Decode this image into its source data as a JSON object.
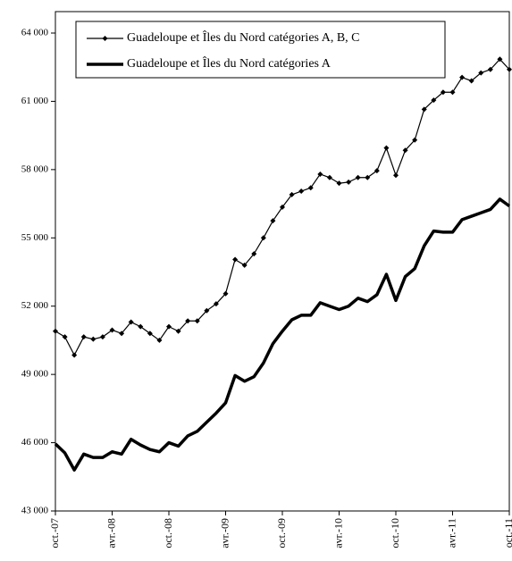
{
  "chart_data": {
    "type": "line",
    "categories": [
      "oct.-07",
      null,
      null,
      null,
      null,
      null,
      "avr.-08",
      null,
      null,
      null,
      null,
      null,
      "oct.-08",
      null,
      null,
      null,
      null,
      null,
      "avr.-09",
      null,
      null,
      null,
      null,
      null,
      "oct.-09",
      null,
      null,
      null,
      null,
      null,
      "avr.-10",
      null,
      null,
      null,
      null,
      null,
      "oct.-10",
      null,
      null,
      null,
      null,
      null,
      "avr.-11",
      null,
      null,
      null,
      null,
      null,
      "oct.-11"
    ],
    "series": [
      {
        "name": "Guadeloupe et Îles du Nord catégories A, B, C",
        "color": "#000000",
        "marker": true,
        "values": [
          50900,
          50650,
          49850,
          50650,
          50550,
          50650,
          50950,
          50800,
          51300,
          51100,
          50800,
          50500,
          51100,
          50900,
          51350,
          51350,
          51800,
          52100,
          52550,
          54050,
          53800,
          54300,
          55000,
          55750,
          56350,
          56900,
          57050,
          57200,
          57800,
          57650,
          57400,
          57450,
          57650,
          57650,
          57950,
          58950,
          57750,
          58850,
          59300,
          60650,
          61050,
          61400,
          61400,
          62050,
          61900,
          62250,
          62400,
          62850,
          62400
        ]
      },
      {
        "name": "Guadeloupe et Îles du Nord catégories A",
        "color": "#000000",
        "marker": false,
        "values": [
          45950,
          45550,
          44800,
          45500,
          45350,
          45350,
          45600,
          45500,
          46150,
          45900,
          45700,
          45600,
          46000,
          45850,
          46300,
          46500,
          46900,
          47300,
          47750,
          48950,
          48700,
          48900,
          49500,
          50350,
          50900,
          51400,
          51600,
          51600,
          52150,
          52000,
          51850,
          52000,
          52350,
          52200,
          52500,
          53400,
          52250,
          53300,
          53650,
          54650,
          55300,
          55250,
          55250,
          55800,
          55950,
          56100,
          56250,
          56700,
          56400
        ]
      }
    ],
    "ylim": [
      43000,
      64000
    ],
    "yticks": [
      {
        "value": 43000,
        "label": "43 000"
      },
      {
        "value": 46000,
        "label": "46 000"
      },
      {
        "value": 49000,
        "label": "49 000"
      },
      {
        "value": 52000,
        "label": "52 000"
      },
      {
        "value": 55000,
        "label": "55 000"
      },
      {
        "value": 58000,
        "label": "58 000"
      },
      {
        "value": 61000,
        "label": "61 000"
      },
      {
        "value": 64000,
        "label": "64 000"
      }
    ],
    "legend": "top-left"
  }
}
